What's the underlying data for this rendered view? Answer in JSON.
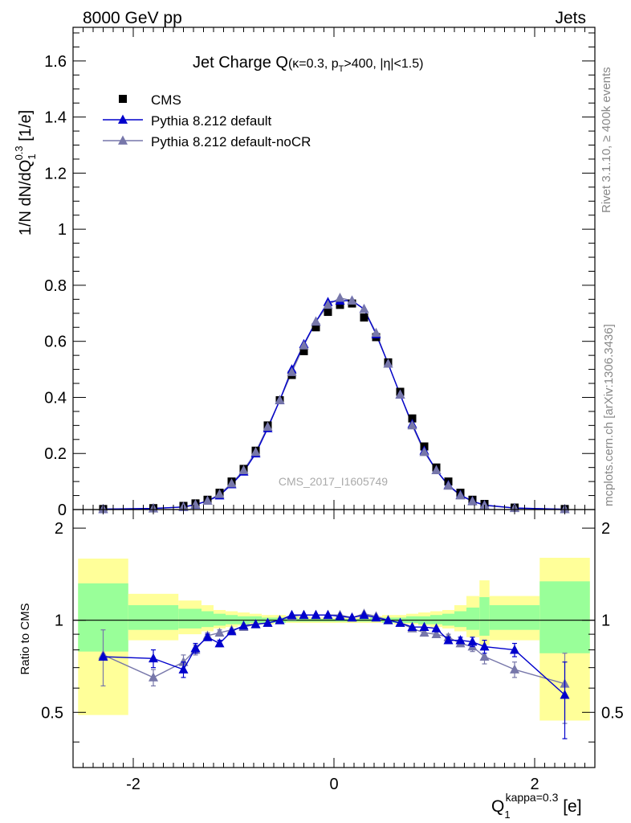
{
  "header": {
    "left": "8000 GeV pp",
    "right": "Jets"
  },
  "side": {
    "rivet": "Rivet 3.1.10, ≥ 400k events",
    "mcplots": "mcplots.cern.ch [arXiv:1306.3436]"
  },
  "chart_data": {
    "type": "line",
    "title": "Jet Charge Q",
    "title_sub": "(κ=0.3, p",
    "title_sub_T": "T",
    "title_sub_rest": ">400, |η|<1.5)",
    "ylabel_main_1": "1/N dN/dQ",
    "ylabel_main_sub": "1",
    "ylabel_main_sup": "0.3",
    "ylabel_main_unit": " [1/e]",
    "ylabel_ratio": "Ratio to CMS",
    "xlabel_Q": "Q",
    "xlabel_sub": "1",
    "xlabel_sup": "kappa=0.3",
    "xlabel_unit": " [e]",
    "watermark": "CMS_2017_I1605749",
    "xlim": [
      -2.6,
      2.6
    ],
    "ylim_main": [
      0,
      1.72
    ],
    "ylim_ratio": [
      0.33,
      2.3
    ],
    "x_ticks": [
      "-2",
      "0",
      "2"
    ],
    "x_tick_values": [
      -2,
      0,
      2
    ],
    "y_ticks_main": [
      "0",
      "0.2",
      "0.4",
      "0.6",
      "0.8",
      "1",
      "1.2",
      "1.4",
      "1.6"
    ],
    "y_tick_values_main": [
      0,
      0.2,
      0.4,
      0.6,
      0.8,
      1,
      1.2,
      1.4,
      1.6
    ],
    "y_ticks_ratio": [
      "0.5",
      "1",
      "2"
    ],
    "y_tick_values_ratio": [
      0.5,
      1,
      2
    ],
    "legend": [
      {
        "name": "CMS",
        "color": "#000000",
        "marker": "square"
      },
      {
        "name": "Pythia 8.212 default",
        "color": "#0000cc",
        "marker": "triangle"
      },
      {
        "name": "Pythia 8.212 default-noCR",
        "color": "#7777aa",
        "marker": "triangle"
      }
    ],
    "x": [
      -2.3,
      -1.8,
      -1.5,
      -1.38,
      -1.26,
      -1.14,
      -1.02,
      -0.9,
      -0.78,
      -0.66,
      -0.54,
      -0.42,
      -0.3,
      -0.18,
      -0.06,
      0.06,
      0.18,
      0.3,
      0.42,
      0.54,
      0.66,
      0.78,
      0.9,
      1.02,
      1.14,
      1.26,
      1.38,
      1.5,
      1.8,
      2.3
    ],
    "series": [
      {
        "name": "CMS",
        "values": [
          0.002,
          0.005,
          0.013,
          0.022,
          0.035,
          0.06,
          0.1,
          0.145,
          0.21,
          0.3,
          0.39,
          0.48,
          0.565,
          0.65,
          0.705,
          0.73,
          0.735,
          0.685,
          0.615,
          0.525,
          0.42,
          0.325,
          0.225,
          0.15,
          0.1,
          0.06,
          0.035,
          0.02,
          0.007,
          0.002
        ]
      },
      {
        "name": "Pythia 8.212 default",
        "values": [
          0.0015,
          0.004,
          0.009,
          0.017,
          0.031,
          0.05,
          0.09,
          0.135,
          0.2,
          0.29,
          0.39,
          0.5,
          0.59,
          0.67,
          0.74,
          0.745,
          0.745,
          0.715,
          0.625,
          0.52,
          0.41,
          0.305,
          0.21,
          0.14,
          0.087,
          0.052,
          0.03,
          0.016,
          0.0055,
          0.001
        ],
        "ratio": [
          0.76,
          0.75,
          0.69,
          0.81,
          0.88,
          0.84,
          0.92,
          0.96,
          0.97,
          0.98,
          1.0,
          1.04,
          1.04,
          1.04,
          1.04,
          1.03,
          1.02,
          1.04,
          1.02,
          1.0,
          0.98,
          0.95,
          0.95,
          0.94,
          0.86,
          0.86,
          0.85,
          0.82,
          0.8,
          0.57
        ],
        "ratio_err": [
          0.0,
          0.05,
          0.04,
          0.03,
          0.02,
          0.02,
          0.01,
          0.01,
          0.01,
          0.01,
          0.005,
          0.005,
          0.005,
          0.005,
          0.005,
          0.005,
          0.005,
          0.005,
          0.005,
          0.005,
          0.01,
          0.01,
          0.01,
          0.01,
          0.02,
          0.02,
          0.03,
          0.04,
          0.04,
          0.16
        ]
      },
      {
        "name": "Pythia 8.212 default-noCR",
        "values": [
          0.0015,
          0.0035,
          0.0095,
          0.018,
          0.031,
          0.055,
          0.093,
          0.14,
          0.205,
          0.295,
          0.39,
          0.49,
          0.585,
          0.67,
          0.73,
          0.755,
          0.745,
          0.715,
          0.63,
          0.52,
          0.41,
          0.3,
          0.205,
          0.14,
          0.085,
          0.05,
          0.029,
          0.015,
          0.005,
          0.0012
        ],
        "ratio": [
          0.77,
          0.65,
          0.73,
          0.8,
          0.89,
          0.91,
          0.93,
          0.95,
          0.97,
          0.98,
          1.0,
          1.03,
          1.04,
          1.04,
          1.04,
          1.04,
          1.02,
          1.05,
          1.03,
          1.0,
          0.98,
          0.94,
          0.91,
          0.9,
          0.88,
          0.84,
          0.82,
          0.76,
          0.69,
          0.62
        ],
        "ratio_err": [
          0.16,
          0.04,
          0.04,
          0.03,
          0.02,
          0.02,
          0.01,
          0.01,
          0.01,
          0.01,
          0.005,
          0.005,
          0.005,
          0.005,
          0.005,
          0.005,
          0.005,
          0.005,
          0.005,
          0.005,
          0.01,
          0.01,
          0.01,
          0.01,
          0.02,
          0.02,
          0.03,
          0.04,
          0.04,
          0.16
        ]
      }
    ],
    "band_edges": [
      -2.55,
      -2.05,
      -1.55,
      -1.32,
      -1.2,
      -1.08,
      -0.96,
      -0.84,
      -0.72,
      -0.6,
      -0.48,
      -0.36,
      -0.24,
      -0.12,
      0.0,
      0.12,
      0.24,
      0.36,
      0.48,
      0.6,
      0.72,
      0.84,
      0.96,
      1.08,
      1.2,
      1.32,
      1.45,
      1.55,
      2.05,
      2.55
    ],
    "band_yellow": [
      [
        0.49,
        1.59
      ],
      [
        0.86,
        1.22
      ],
      [
        0.9,
        1.16
      ],
      [
        0.92,
        1.12
      ],
      [
        0.94,
        1.08
      ],
      [
        0.95,
        1.07
      ],
      [
        0.96,
        1.06
      ],
      [
        0.97,
        1.05
      ],
      [
        0.97,
        1.04
      ],
      [
        0.98,
        1.04
      ],
      [
        0.98,
        1.03
      ],
      [
        0.98,
        1.03
      ],
      [
        0.98,
        1.02
      ],
      [
        0.98,
        1.02
      ],
      [
        0.98,
        1.02
      ],
      [
        0.98,
        1.02
      ],
      [
        0.98,
        1.03
      ],
      [
        0.98,
        1.03
      ],
      [
        0.98,
        1.04
      ],
      [
        0.97,
        1.04
      ],
      [
        0.97,
        1.05
      ],
      [
        0.96,
        1.06
      ],
      [
        0.95,
        1.07
      ],
      [
        0.94,
        1.08
      ],
      [
        0.92,
        1.12
      ],
      [
        0.88,
        1.2
      ],
      [
        0.83,
        1.35
      ],
      [
        0.86,
        1.2
      ],
      [
        0.47,
        1.6
      ]
    ],
    "band_green": [
      [
        0.79,
        1.32
      ],
      [
        0.93,
        1.12
      ],
      [
        0.94,
        1.09
      ],
      [
        0.95,
        1.07
      ],
      [
        0.96,
        1.05
      ],
      [
        0.97,
        1.04
      ],
      [
        0.97,
        1.03
      ],
      [
        0.98,
        1.03
      ],
      [
        0.98,
        1.02
      ],
      [
        0.98,
        1.02
      ],
      [
        0.99,
        1.02
      ],
      [
        0.99,
        1.01
      ],
      [
        0.99,
        1.01
      ],
      [
        0.99,
        1.01
      ],
      [
        0.99,
        1.01
      ],
      [
        0.99,
        1.01
      ],
      [
        0.99,
        1.01
      ],
      [
        0.99,
        1.02
      ],
      [
        0.98,
        1.02
      ],
      [
        0.98,
        1.02
      ],
      [
        0.98,
        1.03
      ],
      [
        0.97,
        1.03
      ],
      [
        0.97,
        1.04
      ],
      [
        0.96,
        1.05
      ],
      [
        0.95,
        1.07
      ],
      [
        0.93,
        1.1
      ],
      [
        0.89,
        1.19
      ],
      [
        0.93,
        1.12
      ],
      [
        0.78,
        1.34
      ]
    ]
  }
}
